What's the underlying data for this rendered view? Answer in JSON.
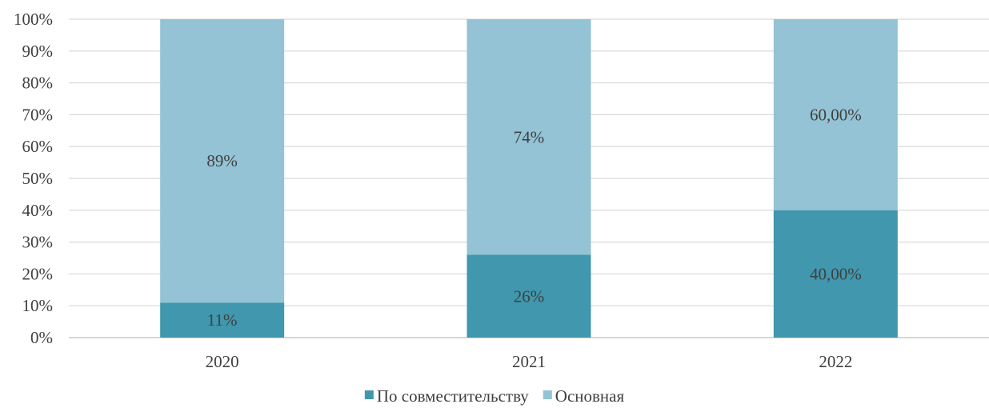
{
  "chart_data": {
    "type": "bar",
    "stacked": "percent",
    "categories": [
      "2020",
      "2021",
      "2022"
    ],
    "series": [
      {
        "name": "По совместительству",
        "color": "#4097AE",
        "values": [
          11,
          26,
          40
        ],
        "labels": [
          "11%",
          "26%",
          "40,00%"
        ]
      },
      {
        "name": "Основная",
        "color": "#93C3D5",
        "values": [
          89,
          74,
          60
        ],
        "labels": [
          "89%",
          "74%",
          "60,00%"
        ]
      }
    ],
    "yticks": [
      "0%",
      "10%",
      "20%",
      "30%",
      "40%",
      "50%",
      "60%",
      "70%",
      "80%",
      "90%",
      "100%"
    ],
    "ylim": [
      0,
      100
    ],
    "grid": true,
    "gridColor": "#D9D9D9",
    "legend": "bottom-center"
  }
}
